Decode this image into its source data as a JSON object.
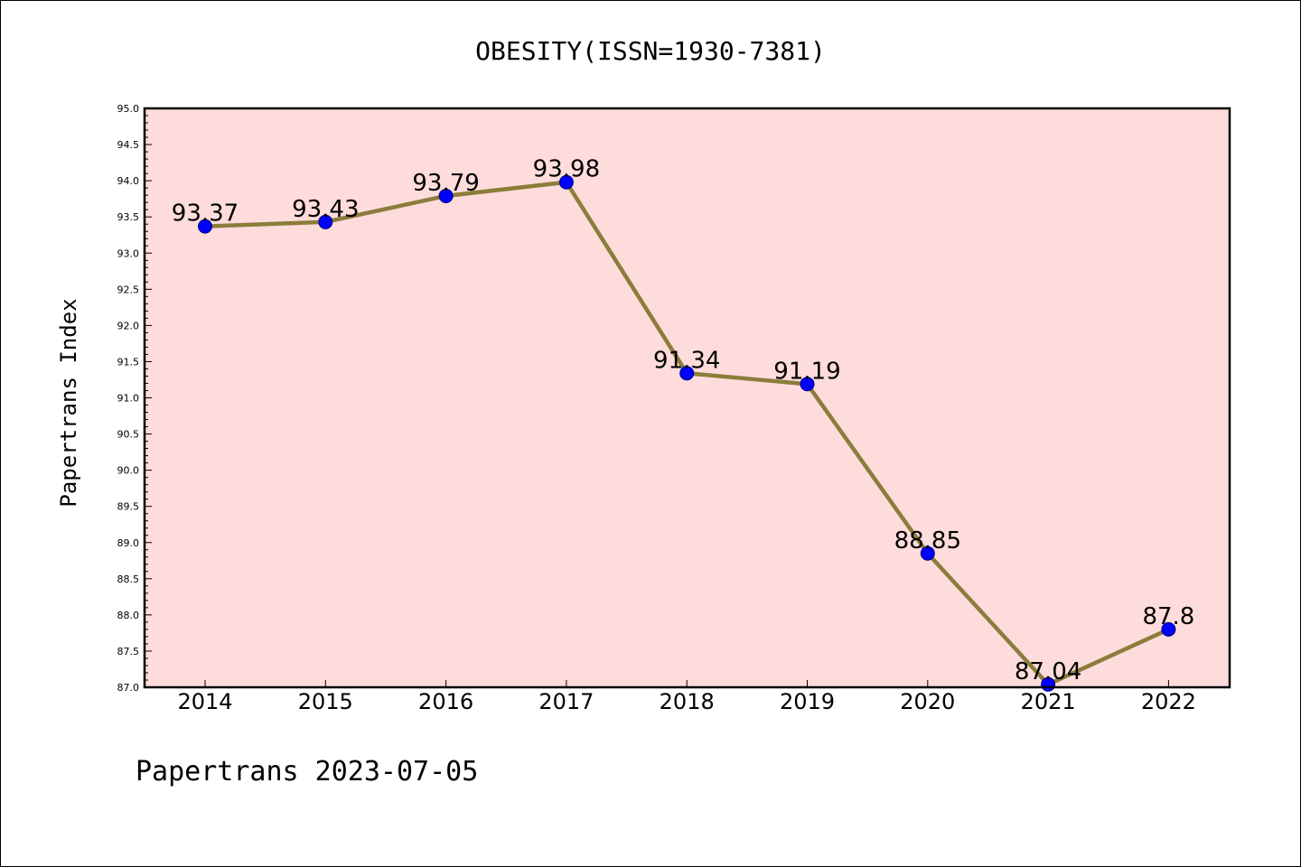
{
  "chart_data": {
    "type": "line",
    "title": "OBESITY(ISSN=1930-7381)",
    "ylabel": "Papertrans Index",
    "xlabel": "",
    "footer": "Papertrans 2023-07-05",
    "categories": [
      "2014",
      "2015",
      "2016",
      "2017",
      "2018",
      "2019",
      "2020",
      "2021",
      "2022"
    ],
    "series": [
      {
        "values": [
          93.37,
          93.43,
          93.79,
          93.98,
          91.34,
          91.19,
          88.85,
          87.04,
          87.8
        ],
        "labels": [
          "93.37",
          "93.43",
          "93.79",
          "93.98",
          "91.34",
          "91.19",
          "88.85",
          "87.04",
          "87.8"
        ]
      }
    ],
    "ylim": [
      87.0,
      95.0
    ],
    "yticks": [
      "87.0",
      "87.5",
      "88.0",
      "88.5",
      "89.0",
      "89.5",
      "90.0",
      "90.5",
      "91.0",
      "91.5",
      "92.0",
      "92.5",
      "93.0",
      "93.5",
      "94.0",
      "94.5",
      "95.0"
    ],
    "grid": false,
    "colors": {
      "plot_background": "#ffdcdc",
      "line": "#8b7d3a",
      "marker": "#0000ff"
    }
  }
}
